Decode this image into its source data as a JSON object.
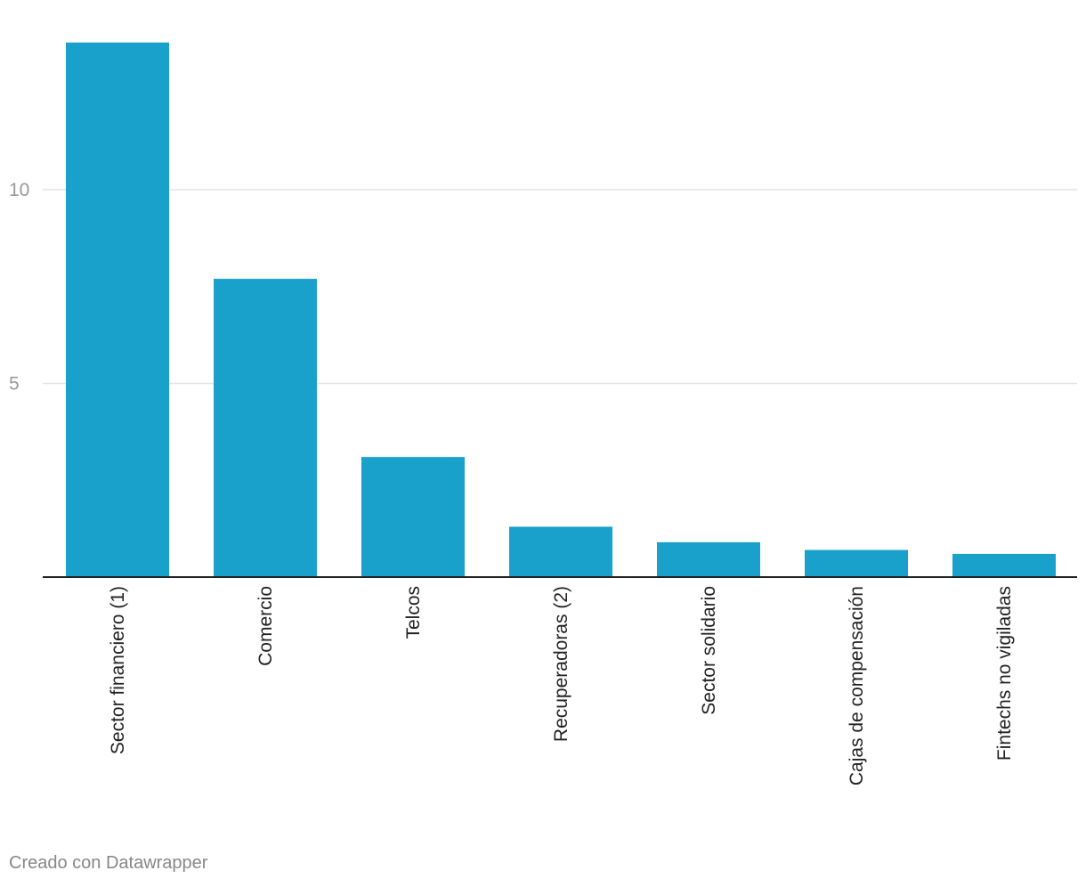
{
  "colors": {
    "bar": "#1aa1cb",
    "gridline": "#e3e3e3",
    "baseline": "#222222",
    "tick_text": "#999999",
    "category_text": "#222222",
    "footer_text": "#888888"
  },
  "chart_data": {
    "type": "bar",
    "categories": [
      "Sector financiero (1)",
      "Comercio",
      "Telcos",
      "Recuperadoras (2)",
      "Sector solidario",
      "Cajas de compensación",
      "Fintechs no vigiladas"
    ],
    "values": [
      13.8,
      7.7,
      3.1,
      1.3,
      0.9,
      0.7,
      0.6
    ],
    "yticks": [
      5,
      10
    ],
    "ylim": [
      0,
      14.5
    ],
    "grid": true,
    "legend": "none"
  },
  "footer": {
    "credit": "Creado con Datawrapper"
  }
}
